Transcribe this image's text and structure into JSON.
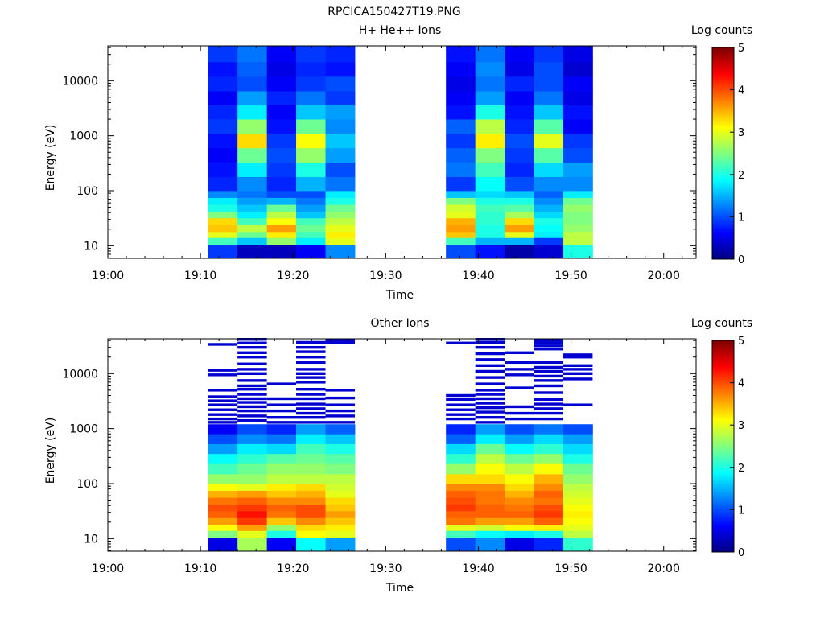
{
  "figure_title": "RPCICA150427T19.PNG",
  "colorbar": {
    "label": "Log counts",
    "ticks": [
      "0",
      "1",
      "2",
      "3",
      "4",
      "5"
    ],
    "range": [
      0,
      5
    ],
    "colormap": "jet"
  },
  "chart_data": [
    {
      "type": "heatmap",
      "title": "H+ He++ Ions",
      "xlabel": "Time",
      "ylabel": "Energy (eV)",
      "x_tick_labels": [
        "19:00",
        "19:10",
        "19:20",
        "19:30",
        "19:40",
        "19:50",
        "20:00"
      ],
      "y_tick_labels": [
        "10",
        "100",
        "1000",
        "10000"
      ],
      "x_range_minutes_after_1900": [
        0,
        63.5
      ],
      "y_scale": "log",
      "y_range_eV": [
        5.9,
        43000
      ],
      "colorbar_range": [
        0,
        5
      ],
      "columns": [
        {
          "t_start": 10.83,
          "t_end": 14.0
        },
        {
          "t_start": 14.0,
          "t_end": 17.17
        },
        {
          "t_start": 17.17,
          "t_end": 20.33
        },
        {
          "t_start": 20.33,
          "t_end": 23.5
        },
        {
          "t_start": 23.5,
          "t_end": 26.67
        },
        {
          "t_start": 36.5,
          "t_end": 39.67
        },
        {
          "t_start": 39.67,
          "t_end": 42.83
        },
        {
          "t_start": 42.83,
          "t_end": 46.0
        },
        {
          "t_start": 46.0,
          "t_end": 49.17
        },
        {
          "t_start": 49.17,
          "t_end": 52.33
        }
      ],
      "energy_bands_eV": [
        [
          6,
          10.5
        ],
        [
          10.5,
          14
        ],
        [
          14,
          18
        ],
        [
          18,
          24
        ],
        [
          24,
          32
        ],
        [
          32,
          42
        ],
        [
          42,
          56
        ],
        [
          56,
          75
        ],
        [
          75,
          100
        ],
        [
          100,
          180
        ],
        [
          180,
          330
        ],
        [
          330,
          600
        ],
        [
          600,
          1100
        ],
        [
          1100,
          2000
        ],
        [
          2000,
          3600
        ],
        [
          3600,
          6500
        ],
        [
          6500,
          12000
        ],
        [
          12000,
          22000
        ],
        [
          22000,
          43000
        ]
      ],
      "log_counts": [
        [
          0.9,
          2.2,
          3.0,
          3.4,
          3.3,
          2.5,
          2.0,
          1.8,
          1.3,
          0.8,
          0.7,
          0.6,
          0.7,
          0.9,
          0.8,
          0.6,
          0.8,
          0.7,
          0.9
        ],
        [
          0.3,
          1.6,
          2.4,
          2.8,
          2.2,
          1.8,
          1.6,
          1.4,
          1.2,
          1.3,
          1.8,
          2.4,
          3.3,
          2.6,
          1.8,
          1.4,
          1.0,
          1.1,
          1.2
        ],
        [
          0.3,
          2.6,
          3.2,
          3.6,
          3.1,
          2.8,
          2.4,
          1.5,
          1.0,
          0.8,
          0.9,
          1.0,
          0.9,
          0.7,
          0.6,
          0.8,
          0.6,
          0.5,
          0.6
        ],
        [
          0.6,
          1.8,
          2.2,
          2.4,
          2.2,
          1.6,
          1.4,
          1.2,
          1.0,
          1.5,
          2.0,
          2.6,
          3.1,
          2.4,
          1.6,
          1.2,
          0.9,
          0.8,
          0.9
        ],
        [
          1.3,
          3.0,
          3.2,
          3.0,
          2.8,
          2.6,
          2.4,
          2.0,
          1.8,
          1.2,
          1.0,
          1.4,
          1.6,
          1.3,
          1.4,
          0.9,
          1.0,
          0.7,
          0.8
        ],
        [
          1.0,
          2.2,
          3.4,
          3.6,
          3.5,
          3.0,
          2.9,
          2.5,
          1.6,
          0.9,
          1.2,
          1.1,
          0.9,
          1.1,
          0.7,
          0.6,
          0.5,
          0.6,
          0.7
        ],
        [
          0.7,
          1.5,
          2.0,
          2.0,
          2.1,
          2.1,
          2.2,
          2.0,
          1.7,
          1.9,
          2.2,
          2.5,
          3.2,
          2.8,
          2.0,
          1.4,
          1.2,
          1.3,
          1.2
        ],
        [
          0.2,
          1.5,
          3.0,
          3.6,
          3.3,
          2.7,
          2.3,
          2.0,
          1.6,
          1.0,
          0.8,
          0.9,
          1.0,
          0.8,
          0.7,
          0.6,
          0.8,
          0.5,
          0.6
        ],
        [
          0.4,
          0.9,
          1.8,
          1.9,
          2.0,
          1.7,
          1.5,
          1.3,
          1.1,
          1.3,
          1.7,
          2.3,
          3.0,
          2.3,
          1.6,
          1.2,
          1.0,
          1.0,
          0.9
        ],
        [
          2.0,
          2.8,
          2.8,
          2.6,
          2.5,
          2.5,
          2.6,
          2.4,
          1.8,
          1.3,
          1.4,
          1.0,
          0.9,
          0.6,
          0.7,
          0.5,
          0.6,
          0.4,
          0.5
        ]
      ]
    },
    {
      "type": "heatmap",
      "title": "Other Ions",
      "xlabel": "Time",
      "ylabel": "Energy (eV)",
      "x_tick_labels": [
        "19:00",
        "19:10",
        "19:20",
        "19:30",
        "19:40",
        "19:50",
        "20:00"
      ],
      "y_tick_labels": [
        "10",
        "100",
        "1000",
        "10000"
      ],
      "x_range_minutes_after_1900": [
        0,
        63.5
      ],
      "y_scale": "log",
      "y_range_eV": [
        5.9,
        43000
      ],
      "colorbar_range": [
        0,
        5
      ],
      "columns": [
        {
          "t_start": 10.83,
          "t_end": 14.0
        },
        {
          "t_start": 14.0,
          "t_end": 17.17
        },
        {
          "t_start": 17.17,
          "t_end": 20.33
        },
        {
          "t_start": 20.33,
          "t_end": 23.5
        },
        {
          "t_start": 23.5,
          "t_end": 26.67
        },
        {
          "t_start": 36.5,
          "t_end": 39.67
        },
        {
          "t_start": 39.67,
          "t_end": 42.83
        },
        {
          "t_start": 42.83,
          "t_end": 46.0
        },
        {
          "t_start": 46.0,
          "t_end": 49.17
        },
        {
          "t_start": 49.17,
          "t_end": 52.33
        }
      ],
      "energy_bands_eV": [
        [
          6,
          10.5
        ],
        [
          10.5,
          14
        ],
        [
          14,
          18
        ],
        [
          18,
          24
        ],
        [
          24,
          32
        ],
        [
          32,
          42
        ],
        [
          42,
          56
        ],
        [
          56,
          75
        ],
        [
          75,
          100
        ],
        [
          100,
          150
        ],
        [
          150,
          230
        ],
        [
          230,
          350
        ],
        [
          350,
          530
        ],
        [
          530,
          800
        ],
        [
          800,
          1200
        ]
      ],
      "log_counts": [
        [
          0.5,
          2.5,
          3.1,
          3.6,
          3.9,
          4.0,
          3.8,
          3.5,
          3.1,
          2.6,
          2.2,
          1.9,
          1.4,
          1.0,
          0.6
        ],
        [
          2.7,
          3.0,
          3.6,
          4.1,
          4.3,
          4.1,
          3.9,
          3.6,
          3.0,
          2.6,
          2.4,
          2.1,
          1.8,
          1.3,
          1.0
        ],
        [
          0.6,
          2.0,
          2.6,
          3.4,
          3.8,
          3.9,
          3.7,
          3.4,
          3.2,
          2.8,
          2.6,
          2.3,
          1.7,
          1.2,
          0.8
        ],
        [
          1.9,
          3.1,
          3.3,
          3.7,
          4.0,
          4.0,
          3.7,
          3.5,
          3.3,
          2.8,
          2.6,
          2.4,
          2.2,
          1.8,
          1.4
        ],
        [
          1.4,
          3.0,
          3.2,
          3.4,
          3.6,
          3.4,
          3.3,
          3.0,
          2.9,
          2.8,
          2.5,
          2.3,
          2.0,
          1.6,
          1.1
        ],
        [
          1.0,
          2.2,
          3.0,
          3.8,
          3.9,
          4.1,
          4.0,
          3.9,
          3.7,
          3.3,
          2.6,
          2.1,
          1.7,
          1.1,
          0.8
        ],
        [
          1.3,
          1.9,
          2.9,
          3.6,
          3.9,
          3.9,
          3.8,
          3.8,
          3.7,
          3.3,
          3.1,
          2.8,
          2.4,
          1.8,
          1.4
        ],
        [
          0.5,
          1.8,
          3.1,
          3.6,
          3.9,
          3.8,
          3.7,
          3.5,
          3.3,
          3.1,
          2.8,
          2.4,
          1.9,
          1.4,
          1.0
        ],
        [
          0.8,
          2.0,
          3.2,
          3.9,
          4.1,
          4.0,
          3.8,
          3.9,
          3.7,
          3.5,
          3.1,
          2.6,
          2.1,
          1.7,
          1.2
        ],
        [
          2.1,
          2.8,
          3.0,
          3.1,
          3.2,
          3.1,
          3.0,
          2.9,
          2.8,
          2.6,
          2.4,
          2.0,
          1.7,
          1.4,
          1.0
        ]
      ],
      "sparse_high_energy_lines_eV": [
        [
          1300,
          1500,
          1800,
          2200,
          2700,
          3200,
          3800,
          5000,
          9500,
          11500,
          34000
        ],
        [
          1400,
          1700,
          2100,
          2500,
          3000,
          3500,
          4200,
          5200,
          6000,
          7500,
          10000,
          12000,
          15000,
          20000,
          24000,
          30000,
          36000,
          42000
        ],
        [
          1300,
          1600,
          2100,
          2700,
          3500,
          6500
        ],
        [
          1300,
          1600,
          1900,
          2300,
          2800,
          3500,
          4200,
          5200,
          7000,
          8500,
          10000,
          12000,
          16000,
          20000,
          25000,
          30000,
          37000
        ],
        [
          1300,
          1700,
          2100,
          2700,
          3600,
          5000,
          36000,
          40000
        ],
        [
          1500,
          1800,
          2200,
          2700,
          3400,
          4000,
          36000
        ],
        [
          1300,
          1600,
          2000,
          2400,
          2900,
          3500,
          4200,
          5000,
          6500,
          8500,
          11000,
          14000,
          18000,
          23000,
          30000,
          37000,
          42000
        ],
        [
          1500,
          1900,
          2500,
          5500,
          9500,
          12000,
          16000,
          24000
        ],
        [
          1500,
          1900,
          2300,
          2800,
          3400,
          4500,
          6000,
          7500,
          9000,
          11000,
          13000,
          16000,
          28000,
          32000,
          36000,
          40000
        ],
        [
          2700,
          8000,
          10000,
          12000,
          14000,
          20000,
          22000
        ]
      ]
    }
  ]
}
